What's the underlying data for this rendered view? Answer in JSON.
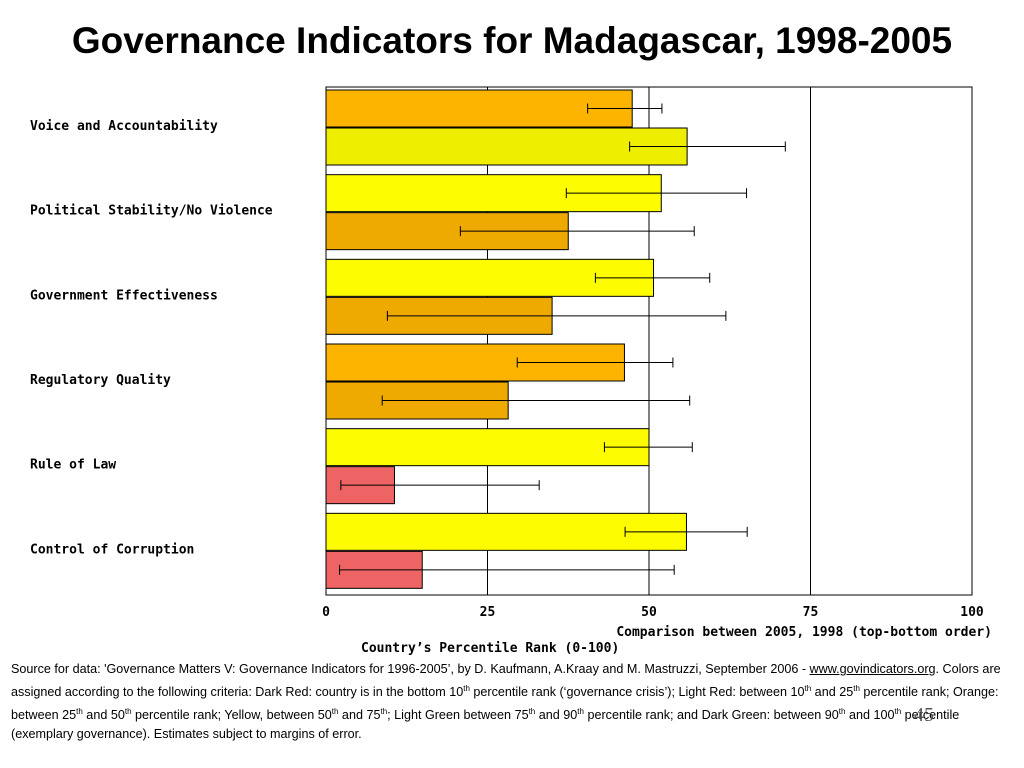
{
  "slide": {
    "title": "Governance Indicators for Madagascar, 1998-2005",
    "slide_number": "45"
  },
  "source": {
    "prefix": "Source for data: 'Governance Matters V: Governance Indicators for 1996-2005’, by D. Kaufmann, A.Kraay and M. Mastruzzi, September 2006 - ",
    "link_text": "www.govindicators.org",
    "criteria_text": ". Colors are assigned according to the following criteria:  Dark Red: country is in the bottom 10th percentile rank (‘governance crisis’); Light Red: between 10th and 25th percentile rank; Orange: between 25th and 50th percentile rank; Yellow, between 50th and 75th; Light Green between 75th and 90th percentile rank; and Dark Green: between 90th and 100th percentile (exemplary governance). Estimates subject to margins of error."
  },
  "chart_data": {
    "type": "bar",
    "orientation": "horizontal",
    "categories": [
      "Voice and Accountability",
      "Political Stability/No Violence",
      "Government Effectiveness",
      "Regulatory Quality",
      "Rule of Law",
      "Control of Corruption"
    ],
    "series": [
      {
        "values": [
          47.4,
          51.9,
          50.7,
          46.2,
          50.0,
          55.8
        ],
        "error_low": [
          40.5,
          37.2,
          41.7,
          29.6,
          43.1,
          46.3
        ],
        "error_high": [
          52.0,
          65.1,
          59.4,
          53.7,
          56.7,
          65.2
        ],
        "colors": [
          "#FDB400",
          "#FDFC00",
          "#FDFC00",
          "#FDB400",
          "#FDFC00",
          "#FDFC00"
        ]
      },
      {
        "values": [
          55.9,
          37.5,
          35.0,
          28.2,
          10.6,
          14.9
        ],
        "error_low": [
          47.0,
          20.8,
          9.5,
          8.7,
          2.3,
          2.1
        ],
        "error_high": [
          71.1,
          57.0,
          61.9,
          56.3,
          33.0,
          53.9
        ],
        "colors": [
          "#EEEE00",
          "#EEAA00",
          "#EEAA00",
          "#EEAA00",
          "#EE6363",
          "#EE6363"
        ]
      }
    ],
    "xlim": [
      0,
      100
    ],
    "xticks": [
      "0",
      "25",
      "50",
      "75",
      "100"
    ],
    "xlabel": "Country’s Percentile Rank (0-100)",
    "legend_note": "Comparison between 2005, 1998 (top-bottom order)",
    "grid": "vertical"
  }
}
